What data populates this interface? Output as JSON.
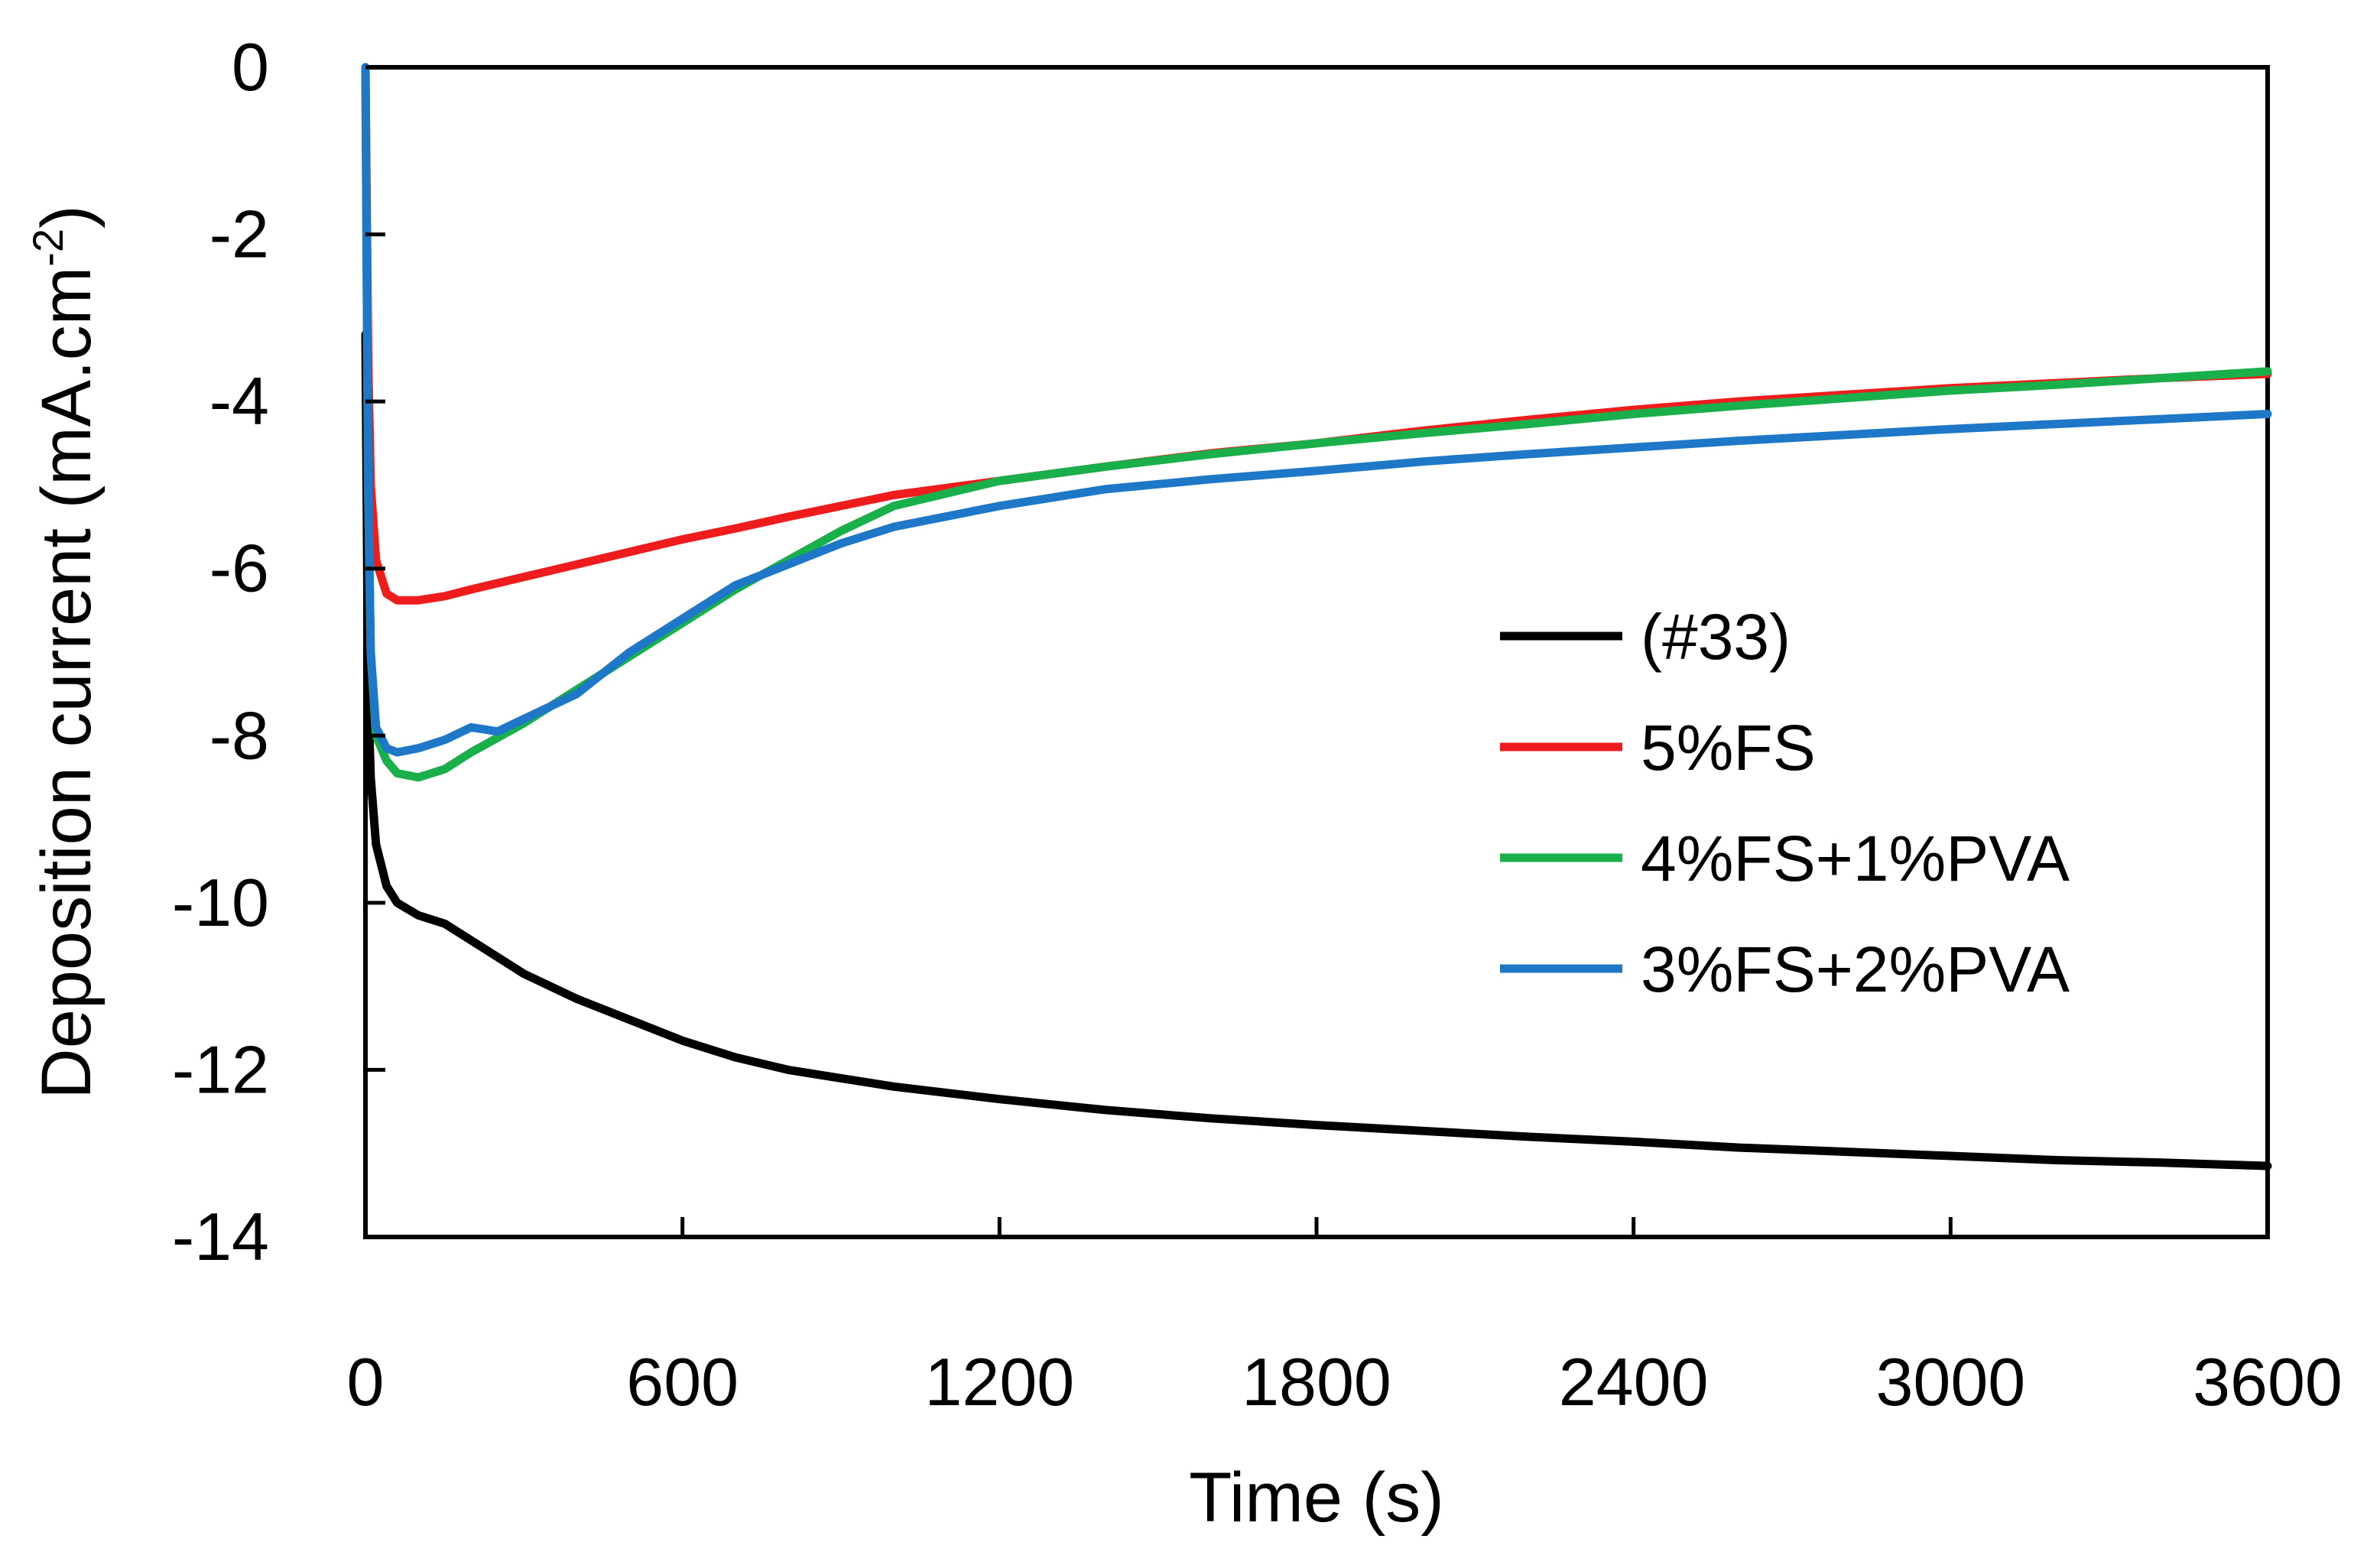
{
  "chart_data": {
    "type": "line",
    "title": "",
    "xlabel": "Time (s)",
    "ylabel_main": "Deposition current (mA.cm",
    "ylabel_sup": "-2",
    "ylabel_close": ")",
    "xlim": [
      0,
      3600
    ],
    "ylim": [
      -14,
      0
    ],
    "xticks": [
      0,
      600,
      1200,
      1800,
      2400,
      3000,
      3600
    ],
    "yticks": [
      0,
      -2,
      -4,
      -6,
      -8,
      -10,
      -12,
      -14
    ],
    "grid": false,
    "legend_position": "center-right",
    "series": [
      {
        "name": "(#33)",
        "color": "#000000",
        "x": [
          0,
          5,
          10,
          20,
          40,
          60,
          100,
          150,
          200,
          300,
          400,
          500,
          600,
          700,
          800,
          900,
          1000,
          1200,
          1400,
          1600,
          1800,
          2000,
          2200,
          2400,
          2600,
          2800,
          3000,
          3200,
          3400,
          3600
        ],
        "y": [
          -3.2,
          -7.5,
          -8.5,
          -9.3,
          -9.8,
          -10.0,
          -10.15,
          -10.25,
          -10.45,
          -10.85,
          -11.15,
          -11.4,
          -11.65,
          -11.85,
          -12.0,
          -12.1,
          -12.2,
          -12.35,
          -12.48,
          -12.58,
          -12.66,
          -12.73,
          -12.8,
          -12.86,
          -12.93,
          -12.98,
          -13.03,
          -13.08,
          -13.11,
          -13.15
        ]
      },
      {
        "name": "5%FS",
        "color": "#ee1c1c",
        "x": [
          0,
          5,
          10,
          20,
          40,
          60,
          100,
          150,
          200,
          300,
          400,
          500,
          600,
          700,
          800,
          900,
          1000,
          1200,
          1400,
          1600,
          1800,
          2000,
          2200,
          2400,
          2600,
          2800,
          3000,
          3200,
          3400,
          3600
        ],
        "y": [
          0,
          -3.5,
          -5.0,
          -5.9,
          -6.3,
          -6.38,
          -6.38,
          -6.33,
          -6.25,
          -6.1,
          -5.95,
          -5.8,
          -5.65,
          -5.52,
          -5.38,
          -5.25,
          -5.12,
          -4.95,
          -4.78,
          -4.62,
          -4.5,
          -4.35,
          -4.22,
          -4.1,
          -4.0,
          -3.92,
          -3.84,
          -3.78,
          -3.72,
          -3.67
        ]
      },
      {
        "name": "4%FS+1%PVA",
        "color": "#19b04b",
        "x": [
          0,
          5,
          10,
          20,
          40,
          60,
          100,
          150,
          200,
          300,
          400,
          500,
          600,
          700,
          800,
          900,
          1000,
          1200,
          1400,
          1600,
          1800,
          2000,
          2200,
          2400,
          2600,
          2800,
          3000,
          3200,
          3400,
          3600
        ],
        "y": [
          0,
          -5.0,
          -7.0,
          -8.0,
          -8.3,
          -8.45,
          -8.5,
          -8.4,
          -8.2,
          -7.85,
          -7.45,
          -7.05,
          -6.65,
          -6.25,
          -5.9,
          -5.55,
          -5.25,
          -4.95,
          -4.78,
          -4.63,
          -4.5,
          -4.38,
          -4.27,
          -4.15,
          -4.05,
          -3.96,
          -3.87,
          -3.8,
          -3.72,
          -3.64
        ]
      },
      {
        "name": "3%FS+2%PVA",
        "color": "#1f77c8",
        "x": [
          0,
          5,
          10,
          20,
          40,
          60,
          100,
          150,
          200,
          250,
          300,
          400,
          500,
          600,
          700,
          800,
          900,
          1000,
          1200,
          1400,
          1600,
          1800,
          2000,
          2200,
          2400,
          2600,
          2800,
          3000,
          3200,
          3400,
          3600
        ],
        "y": [
          0,
          -5.0,
          -7.0,
          -7.9,
          -8.15,
          -8.2,
          -8.15,
          -8.05,
          -7.9,
          -7.95,
          -7.8,
          -7.5,
          -7.0,
          -6.6,
          -6.2,
          -5.95,
          -5.7,
          -5.5,
          -5.25,
          -5.05,
          -4.93,
          -4.83,
          -4.72,
          -4.63,
          -4.55,
          -4.47,
          -4.4,
          -4.33,
          -4.27,
          -4.21,
          -4.15
        ]
      }
    ]
  }
}
